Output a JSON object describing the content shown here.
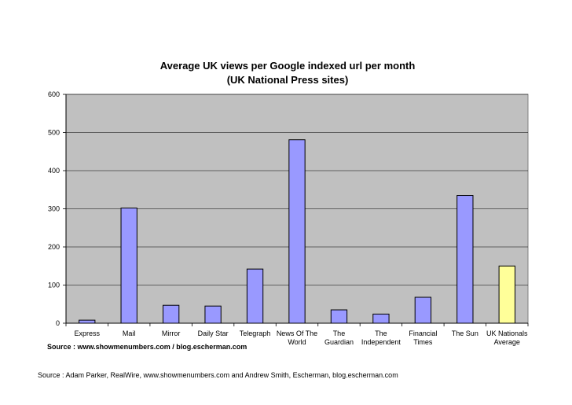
{
  "chart_data": {
    "type": "bar",
    "title": "Average UK views per Google indexed url per month",
    "subtitle": "(UK National Press sites)",
    "categories": [
      [
        "Express"
      ],
      [
        "Mail"
      ],
      [
        "Mirror"
      ],
      [
        "Daily Star"
      ],
      [
        "Telegraph"
      ],
      [
        "News Of The",
        "World"
      ],
      [
        "The",
        "Guardian"
      ],
      [
        "The",
        "Independent"
      ],
      [
        "Financial",
        "Times"
      ],
      [
        "The Sun"
      ],
      [
        "UK Nationals",
        "Average"
      ]
    ],
    "values": [
      8,
      302,
      47,
      45,
      142,
      481,
      35,
      24,
      68,
      335,
      150
    ],
    "highlight_index": 10,
    "ylim": [
      0,
      600
    ],
    "yticks": [
      0,
      100,
      200,
      300,
      400,
      500,
      600
    ],
    "xlabel": "",
    "ylabel": "",
    "grid": true,
    "legend": "none",
    "colors": {
      "plot_background": "#c0c0c0",
      "bar": "#9999ff",
      "highlight_bar": "#ffff99",
      "gridline": "#000000",
      "bar_outline": "#000000"
    }
  },
  "notes": {
    "source_inner": "Source : www.showmenumbers.com / blog.escherman.com",
    "source_outer": "Source : Adam Parker, RealWire, www.showmenumbers.com and Andrew Smith, Escherman, blog.escherman.com"
  }
}
